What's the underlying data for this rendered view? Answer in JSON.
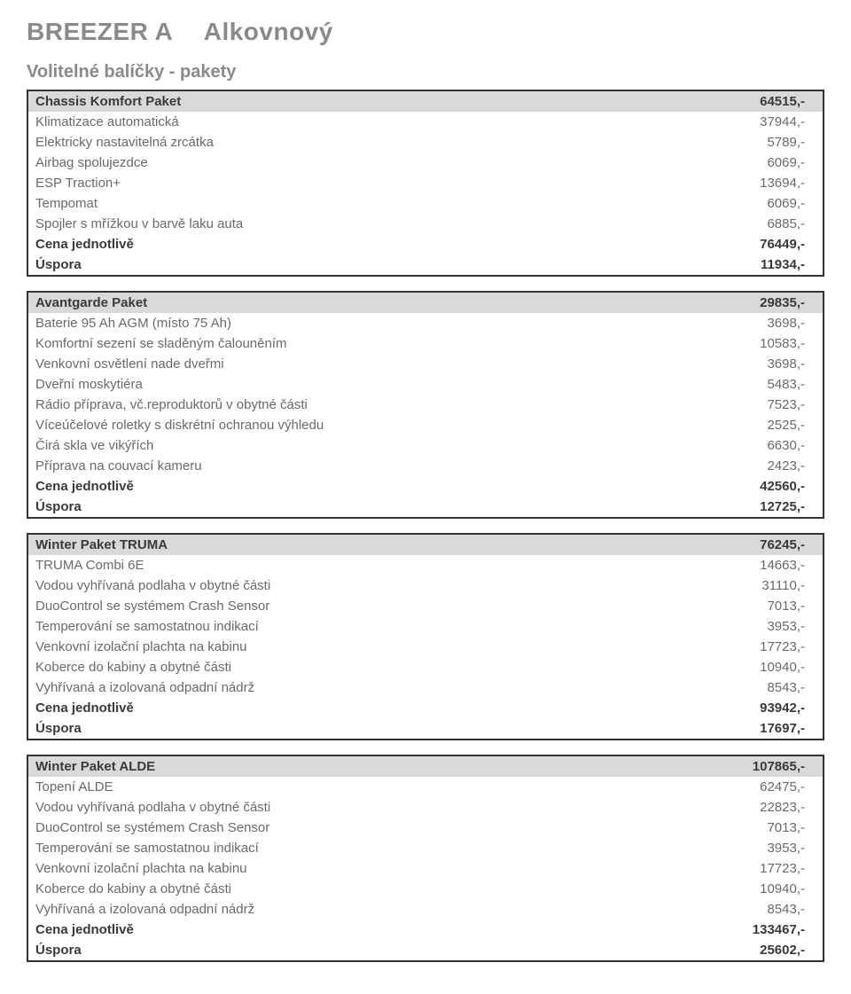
{
  "title": {
    "a": "BREEZER A",
    "b": "Alkovnový"
  },
  "subtitle": "Volitelné balíčky - pakety",
  "labels": {
    "cena": "Cena jednotlivě",
    "uspora": "Úspora"
  },
  "packages": [
    {
      "name": "Chassis Komfort Paket",
      "price": "64515,-",
      "items": [
        {
          "label": "Klimatizace automatická",
          "price": "37944,-"
        },
        {
          "label": "Elektricky nastavitelná zrcátka",
          "price": "5789,-"
        },
        {
          "label": "Airbag spolujezdce",
          "price": "6069,-"
        },
        {
          "label": "ESP Traction+",
          "price": "13694,-"
        },
        {
          "label": "Tempomat",
          "price": "6069,-"
        },
        {
          "label": "Spojler s mřížkou v barvě laku auta",
          "price": "6885,-"
        }
      ],
      "cena": "76449,-",
      "uspora": "11934,-"
    },
    {
      "name": "Avantgarde Paket",
      "price": "29835,-",
      "items": [
        {
          "label": "Baterie 95 Ah AGM (místo 75 Ah)",
          "price": "3698,-"
        },
        {
          "label": "Komfortní sezení se sladěným čalouněním",
          "price": "10583,-"
        },
        {
          "label": "Venkovní osvětlení nade dveřmi",
          "price": "3698,-"
        },
        {
          "label": "Dveřní moskytiéra",
          "price": "5483,-"
        },
        {
          "label": "Rádio příprava, vč.reproduktorů v obytné části",
          "price": "7523,-"
        },
        {
          "label": "Víceúčelové roletky s diskrétní ochranou výhledu",
          "price": "2525,-"
        },
        {
          "label": "Čirá skla ve vikýřích",
          "price": "6630,-"
        },
        {
          "label": "Příprava na couvací kameru",
          "price": "2423,-"
        }
      ],
      "cena": "42560,-",
      "uspora": "12725,-"
    },
    {
      "name": "Winter Paket TRUMA",
      "price": "76245,-",
      "items": [
        {
          "label": "TRUMA Combi 6E",
          "price": "14663,-"
        },
        {
          "label": "Vodou vyhřívaná podlaha v obytné části",
          "price": "31110,-"
        },
        {
          "label": "DuoControl se systémem Crash Sensor",
          "price": "7013,-"
        },
        {
          "label": "Temperování se samostatnou indikací",
          "price": "3953,-"
        },
        {
          "label": "Venkovní izolační plachta na kabinu",
          "price": "17723,-"
        },
        {
          "label": "Koberce do kabiny a obytné části",
          "price": "10940,-"
        },
        {
          "label": "Vyhřívaná a izolovaná odpadní nádrž",
          "price": "8543,-"
        }
      ],
      "cena": "93942,-",
      "uspora": "17697,-"
    },
    {
      "name": "Winter Paket ALDE",
      "price": "107865,-",
      "items": [
        {
          "label": "Topení ALDE",
          "price": "62475,-"
        },
        {
          "label": "Vodou vyhřívaná podlaha v obytné části",
          "price": "22823,-"
        },
        {
          "label": "DuoControl se systémem Crash Sensor",
          "price": "7013,-"
        },
        {
          "label": "Temperování se samostatnou indikací",
          "price": "3953,-"
        },
        {
          "label": "Venkovní izolační plachta na kabinu",
          "price": "17723,-"
        },
        {
          "label": "Koberce do kabiny a obytné části",
          "price": "10940,-"
        },
        {
          "label": "Vyhřívaná a izolovaná odpadní nádrž",
          "price": "8543,-"
        }
      ],
      "cena": "133467,-",
      "uspora": "25602,-"
    }
  ],
  "style": {
    "header_bg": "#d9d9d9",
    "border_color": "#333333",
    "text_color": "#4a4a4a",
    "muted_color": "#8a8a8a",
    "item_color": "#6a6a6a",
    "font_size_body": 15,
    "font_size_title": 28,
    "font_size_subtitle": 20
  }
}
